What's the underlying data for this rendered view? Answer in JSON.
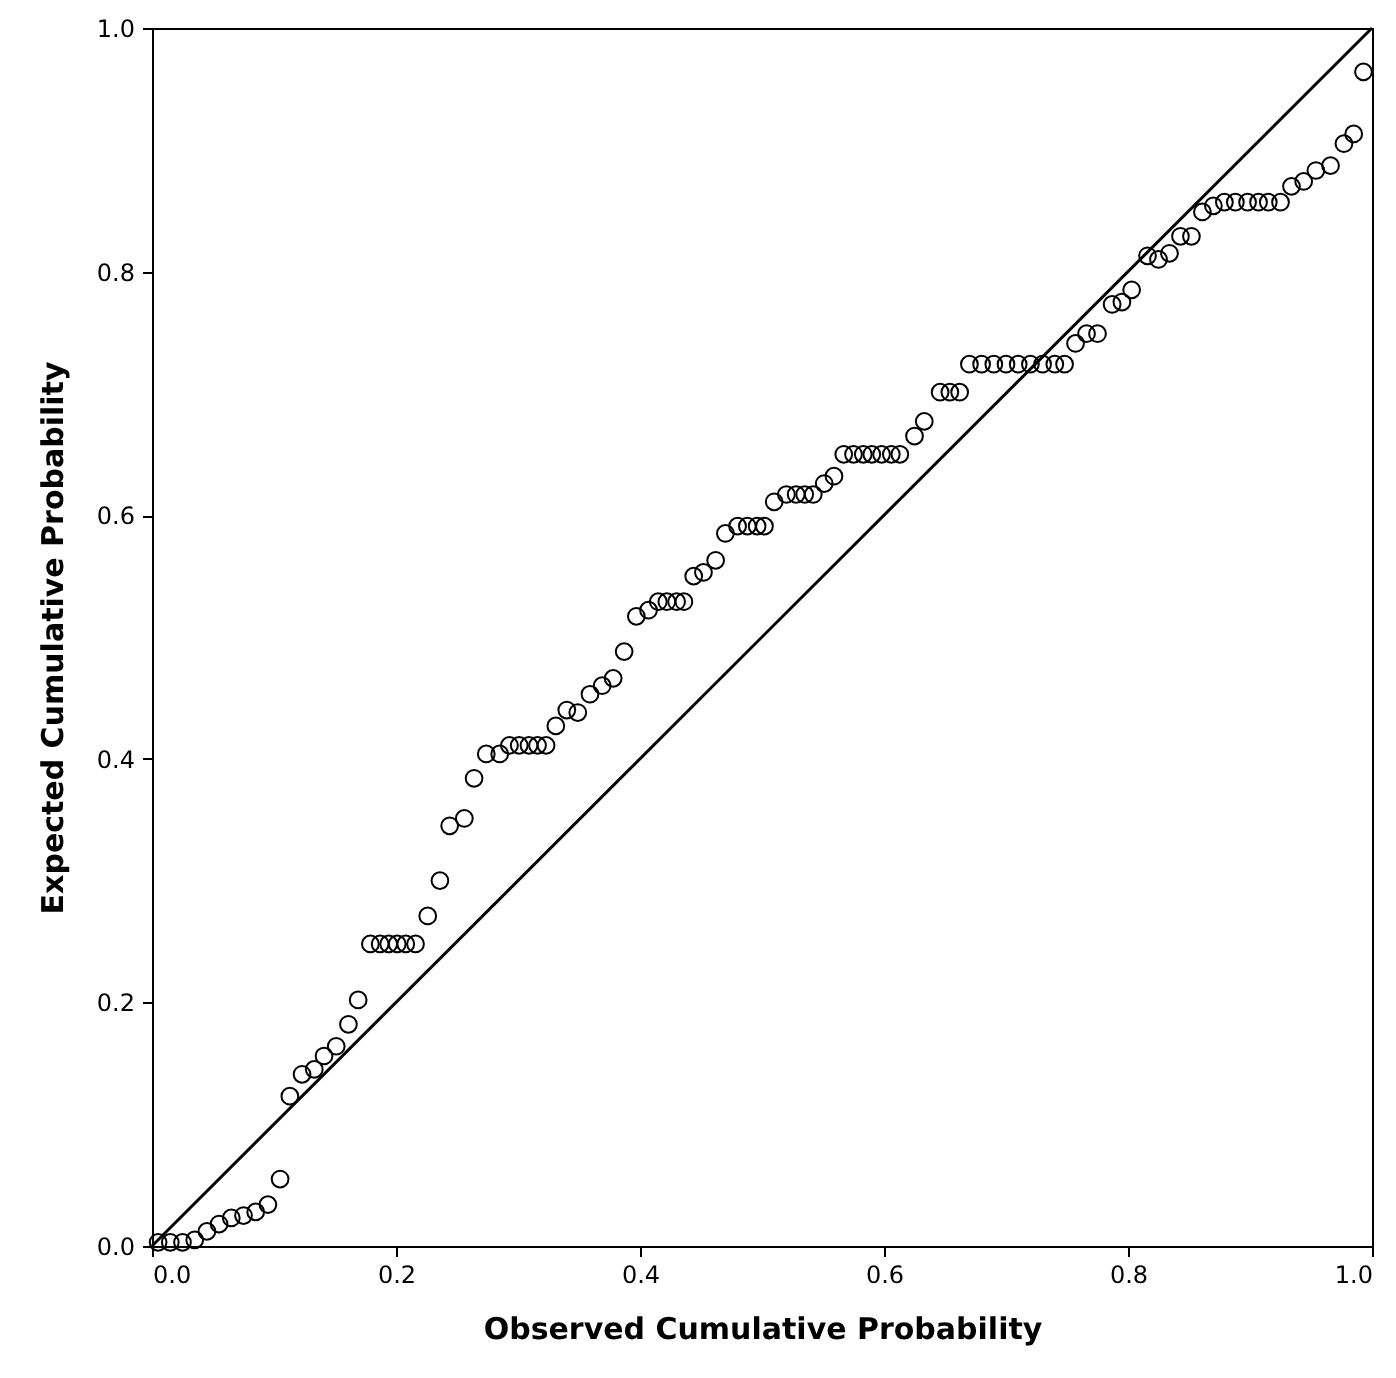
{
  "chart_data": {
    "type": "scatter",
    "xlabel": "Observed Cumulative Probability",
    "ylabel": "Expected Cumulative Probability",
    "xlim": [
      0,
      1
    ],
    "ylim": [
      0,
      1
    ],
    "xticks": [
      {
        "value": 0,
        "label": "0.0"
      },
      {
        "value": 0.2,
        "label": "0.2"
      },
      {
        "value": 0.4,
        "label": "0.4"
      },
      {
        "value": 0.6,
        "label": "0.6"
      },
      {
        "value": 0.8,
        "label": "0.8"
      },
      {
        "value": 1,
        "label": "1.0"
      }
    ],
    "yticks": [
      {
        "value": 0,
        "label": "0.0"
      },
      {
        "value": 0.2,
        "label": "0.2"
      },
      {
        "value": 0.4,
        "label": "0.4"
      },
      {
        "value": 0.6,
        "label": "0.6"
      },
      {
        "value": 0.8,
        "label": "0.8"
      },
      {
        "value": 1,
        "label": "1.0"
      }
    ],
    "grid": false,
    "series": [
      {
        "marker": "circle",
        "color": "#000000",
        "x": [
          0.005,
          0.015,
          0.025,
          0.035,
          0.045,
          0.055,
          0.065,
          0.075,
          0.085,
          0.095,
          0.105,
          0.113,
          0.123,
          0.133,
          0.141,
          0.151,
          0.161,
          0.169,
          0.179,
          0.187,
          0.194,
          0.201,
          0.208,
          0.216,
          0.226,
          0.236,
          0.244,
          0.256,
          0.264,
          0.274,
          0.285,
          0.293,
          0.301,
          0.309,
          0.316,
          0.323,
          0.331,
          0.34,
          0.349,
          0.359,
          0.369,
          0.378,
          0.387,
          0.397,
          0.407,
          0.415,
          0.422,
          0.43,
          0.436,
          0.444,
          0.452,
          0.462,
          0.47,
          0.48,
          0.488,
          0.496,
          0.502,
          0.51,
          0.52,
          0.528,
          0.535,
          0.542,
          0.551,
          0.559,
          0.567,
          0.575,
          0.583,
          0.59,
          0.598,
          0.606,
          0.613,
          0.625,
          0.633,
          0.646,
          0.654,
          0.662,
          0.67,
          0.68,
          0.69,
          0.7,
          0.71,
          0.72,
          0.73,
          0.74,
          0.748,
          0.757,
          0.766,
          0.775,
          0.787,
          0.795,
          0.803,
          0.816,
          0.825,
          0.834,
          0.843,
          0.852,
          0.861,
          0.87,
          0.879,
          0.888,
          0.898,
          0.907,
          0.915,
          0.925,
          0.934,
          0.944,
          0.954,
          0.966,
          0.977,
          0.985,
          0.993
        ],
        "values": [
          0.003,
          0.003,
          0.003,
          0.005,
          0.012,
          0.018,
          0.023,
          0.025,
          0.028,
          0.034,
          0.055,
          0.123,
          0.141,
          0.145,
          0.156,
          0.164,
          0.182,
          0.202,
          0.248,
          0.248,
          0.248,
          0.248,
          0.248,
          0.248,
          0.271,
          0.3,
          0.345,
          0.351,
          0.384,
          0.404,
          0.404,
          0.411,
          0.411,
          0.411,
          0.411,
          0.411,
          0.427,
          0.44,
          0.438,
          0.453,
          0.46,
          0.466,
          0.488,
          0.517,
          0.522,
          0.529,
          0.529,
          0.529,
          0.529,
          0.55,
          0.553,
          0.563,
          0.585,
          0.591,
          0.591,
          0.591,
          0.591,
          0.611,
          0.617,
          0.617,
          0.617,
          0.617,
          0.626,
          0.632,
          0.65,
          0.65,
          0.65,
          0.65,
          0.65,
          0.65,
          0.65,
          0.665,
          0.677,
          0.701,
          0.701,
          0.701,
          0.724,
          0.724,
          0.724,
          0.724,
          0.724,
          0.724,
          0.724,
          0.724,
          0.724,
          0.741,
          0.749,
          0.749,
          0.773,
          0.775,
          0.785,
          0.813,
          0.81,
          0.815,
          0.829,
          0.829,
          0.849,
          0.854,
          0.857,
          0.857,
          0.857,
          0.857,
          0.857,
          0.857,
          0.87,
          0.874,
          0.883,
          0.887,
          0.905,
          0.913,
          0.964
        ]
      },
      {
        "type": "line",
        "color": "#000000",
        "x": [
          0,
          1
        ],
        "values": [
          0,
          1
        ]
      }
    ]
  }
}
